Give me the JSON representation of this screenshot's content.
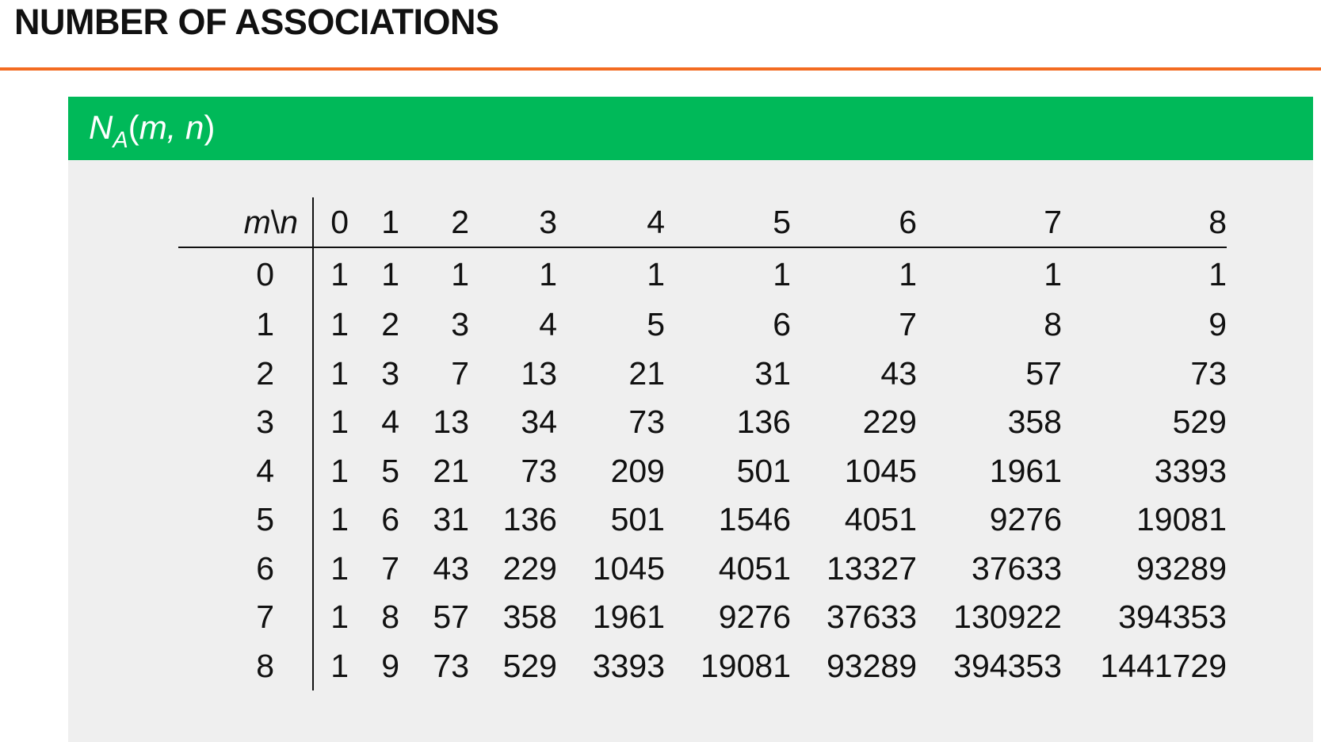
{
  "page_title": "NUMBER OF ASSOCIATIONS",
  "block": {
    "title_main": "N",
    "title_sub": "A",
    "title_open": "(",
    "title_args": "m, n",
    "title_close": ")"
  },
  "table": {
    "corner_m": "m",
    "corner_sep": "\\",
    "corner_n": "n",
    "columns": [
      "0",
      "1",
      "2",
      "3",
      "4",
      "5",
      "6",
      "7",
      "8"
    ],
    "rows": [
      {
        "m": "0",
        "values": [
          "1",
          "1",
          "1",
          "1",
          "1",
          "1",
          "1",
          "1",
          "1"
        ]
      },
      {
        "m": "1",
        "values": [
          "1",
          "2",
          "3",
          "4",
          "5",
          "6",
          "7",
          "8",
          "9"
        ]
      },
      {
        "m": "2",
        "values": [
          "1",
          "3",
          "7",
          "13",
          "21",
          "31",
          "43",
          "57",
          "73"
        ]
      },
      {
        "m": "3",
        "values": [
          "1",
          "4",
          "13",
          "34",
          "73",
          "136",
          "229",
          "358",
          "529"
        ]
      },
      {
        "m": "4",
        "values": [
          "1",
          "5",
          "21",
          "73",
          "209",
          "501",
          "1045",
          "1961",
          "3393"
        ]
      },
      {
        "m": "5",
        "values": [
          "1",
          "6",
          "31",
          "136",
          "501",
          "1546",
          "4051",
          "9276",
          "19081"
        ]
      },
      {
        "m": "6",
        "values": [
          "1",
          "7",
          "43",
          "229",
          "1045",
          "4051",
          "13327",
          "37633",
          "93289"
        ]
      },
      {
        "m": "7",
        "values": [
          "1",
          "8",
          "57",
          "358",
          "1961",
          "9276",
          "37633",
          "130922",
          "394353"
        ]
      },
      {
        "m": "8",
        "values": [
          "1",
          "9",
          "73",
          "529",
          "3393",
          "19081",
          "93289",
          "394353",
          "1441729"
        ]
      }
    ]
  },
  "colors": {
    "title_rule": "#f36b21",
    "block_header": "#00b959",
    "block_body": "#efefef"
  }
}
